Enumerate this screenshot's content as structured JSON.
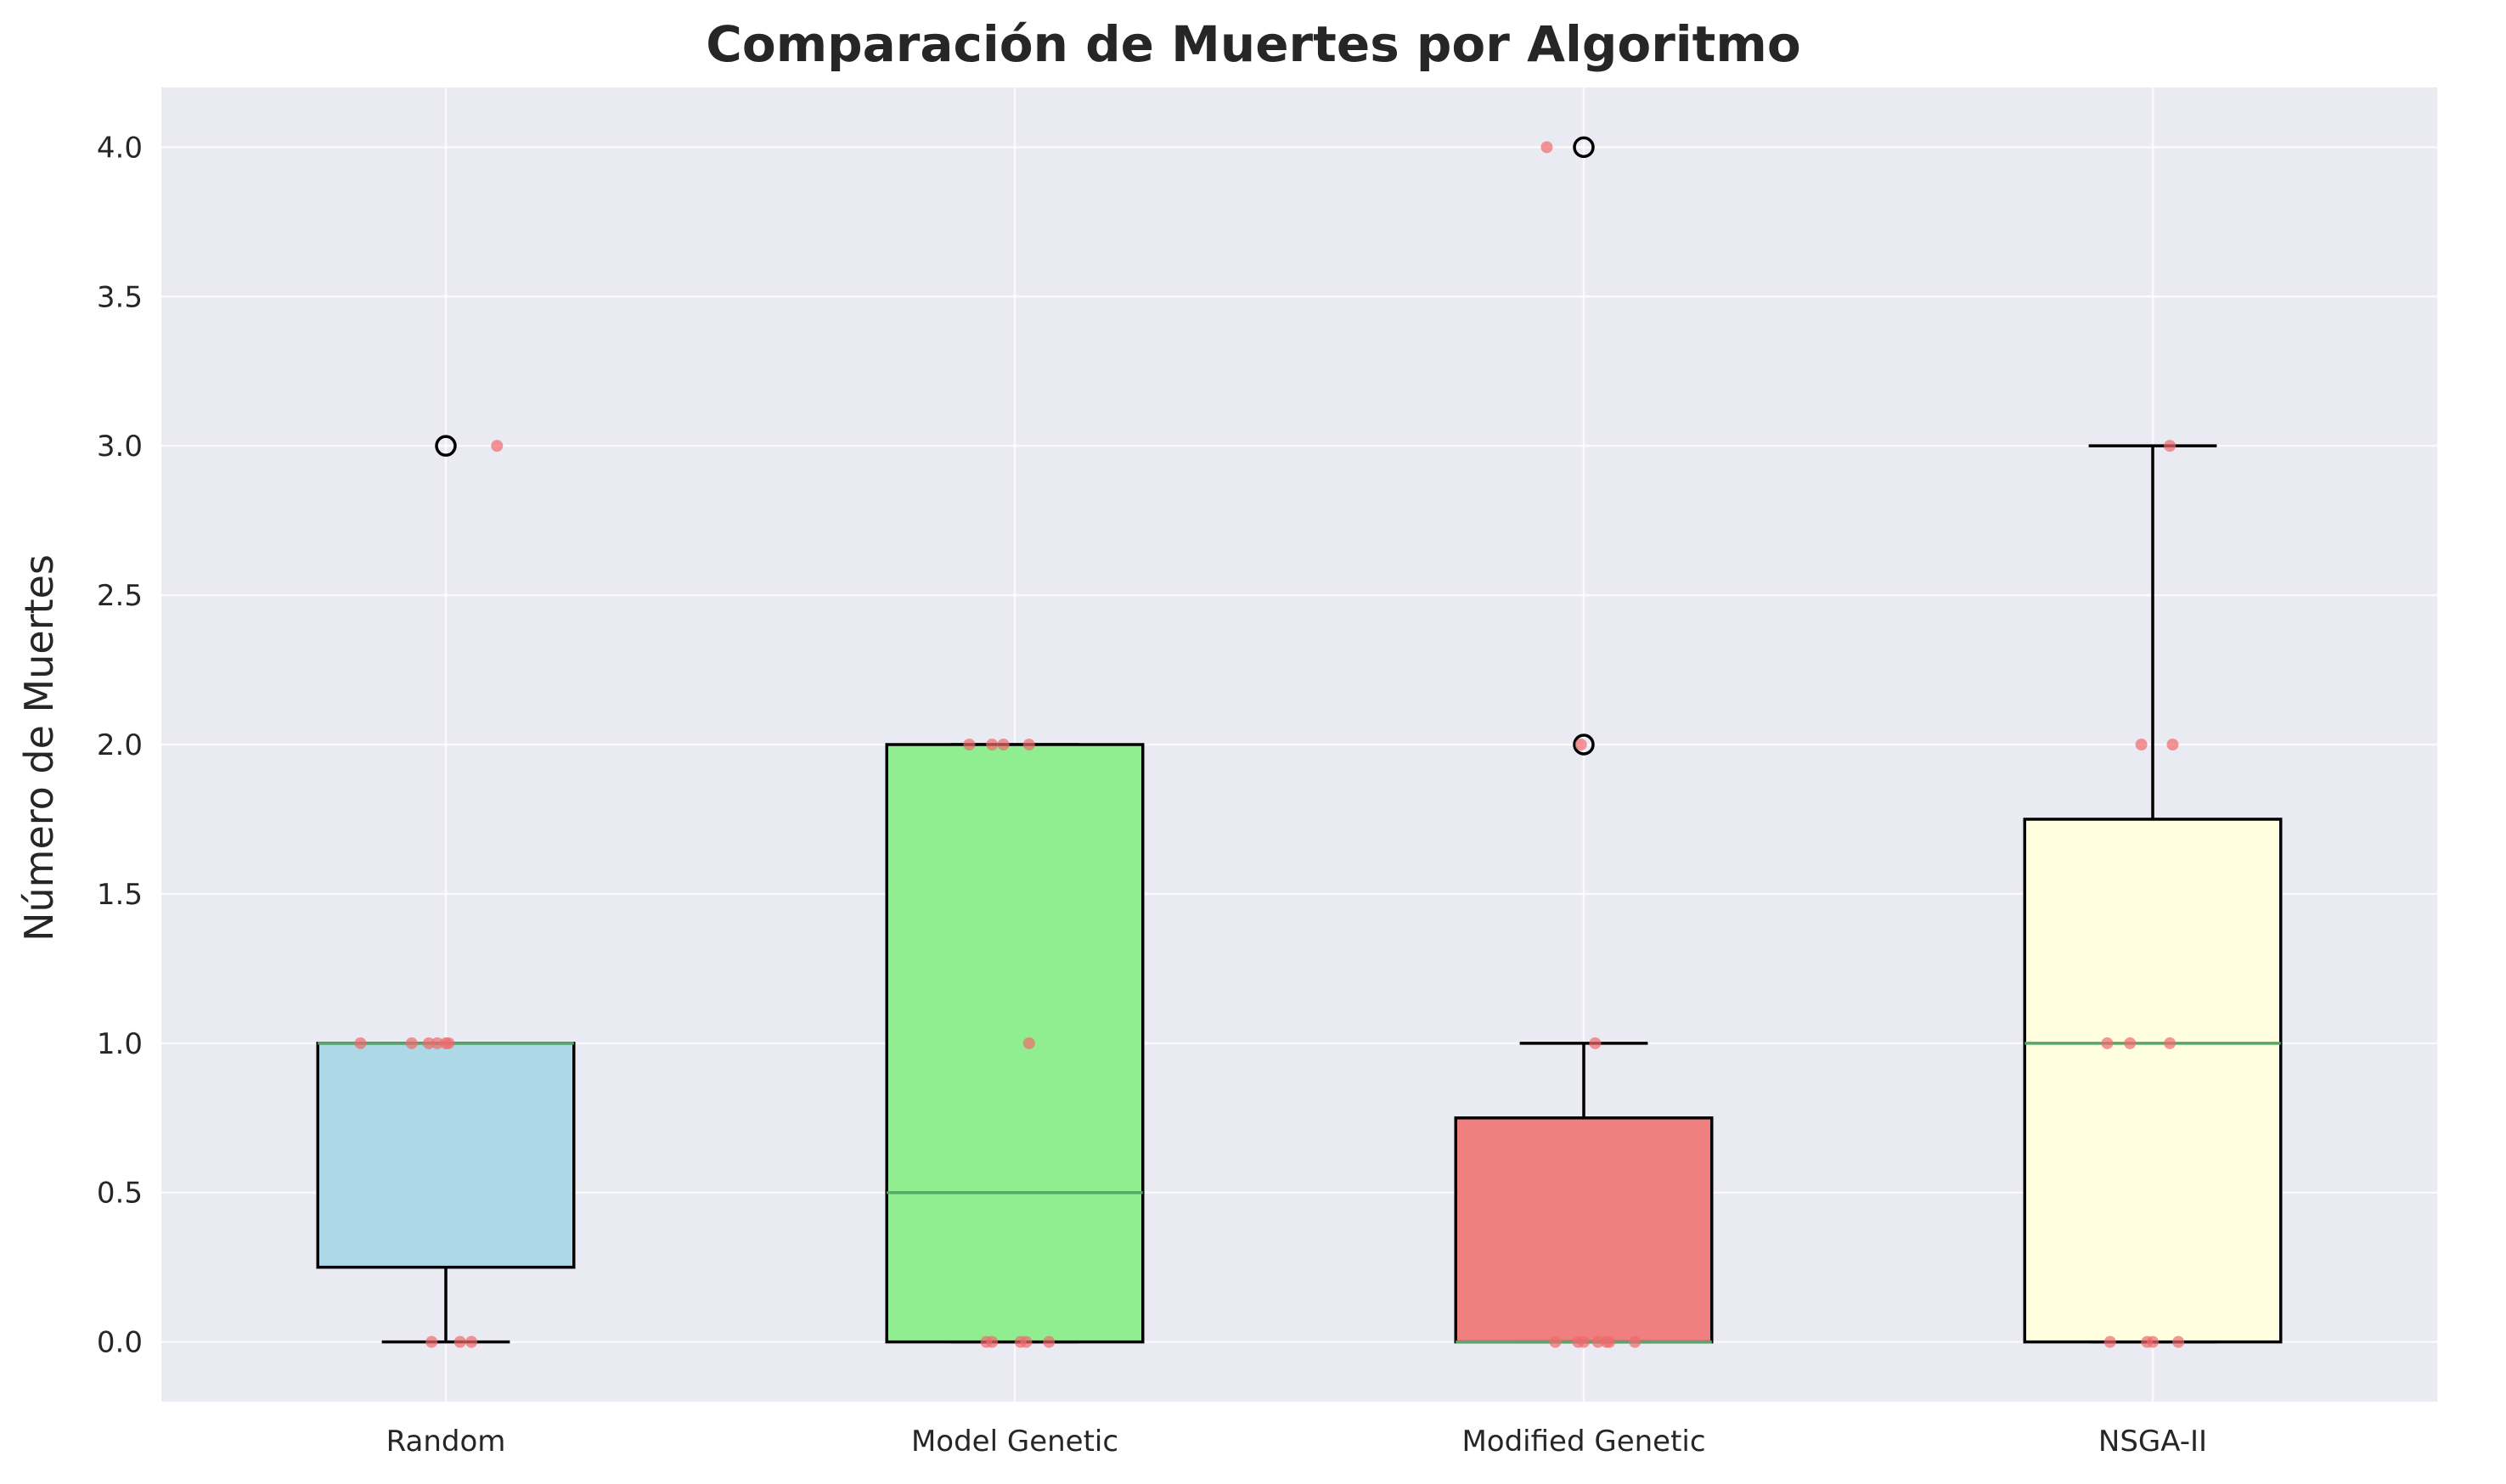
{
  "chart_data": {
    "type": "boxplot",
    "title": "Comparación de Muertes por Algoritmo",
    "xlabel": "",
    "ylabel": "Número de Muertes",
    "ylim": [
      -0.2,
      4.2
    ],
    "yticks": [
      "0.0",
      "0.5",
      "1.0",
      "1.5",
      "2.0",
      "2.5",
      "3.0",
      "3.5",
      "4.0"
    ],
    "ytick_values": [
      0,
      0.5,
      1,
      1.5,
      2,
      2.5,
      3,
      3.5,
      4
    ],
    "grid": true,
    "categories": [
      "Random",
      "Model Genetic",
      "Modified Genetic",
      "NSGA-II"
    ],
    "boxes": [
      {
        "name": "Random",
        "color": "#add8e6",
        "q1": 0.25,
        "median": 1.0,
        "q3": 1.0,
        "whisker_low": 0,
        "whisker_high": 1.0,
        "outliers": [
          3
        ]
      },
      {
        "name": "Model Genetic",
        "color": "#90ee90",
        "q1": 0,
        "median": 0.5,
        "q3": 2.0,
        "whisker_low": 0,
        "whisker_high": 2.0,
        "outliers": []
      },
      {
        "name": "Modified Genetic",
        "color": "#f08080",
        "q1": 0,
        "median": 0,
        "q3": 0.75,
        "whisker_low": 0,
        "whisker_high": 1.0,
        "outliers": [
          2,
          4
        ]
      },
      {
        "name": "NSGA-II",
        "color": "#ffffe0",
        "q1": 0,
        "median": 1.0,
        "q3": 1.75,
        "whisker_low": 0,
        "whisker_high": 3.0,
        "outliers": []
      }
    ],
    "points": [
      {
        "category": "Random",
        "values": [
          1,
          1,
          1,
          1,
          1,
          0,
          0,
          0,
          3,
          1
        ],
        "jitter": [
          -0.3,
          -0.12,
          -0.06,
          -0.03,
          0.01,
          -0.05,
          0.05,
          0.09,
          0.18,
          0.0
        ]
      },
      {
        "category": "Model Genetic",
        "values": [
          2,
          2,
          2,
          2,
          1,
          0,
          0,
          0,
          0,
          0
        ],
        "jitter": [
          -0.16,
          -0.08,
          -0.04,
          0.05,
          0.05,
          -0.1,
          -0.08,
          0.02,
          0.04,
          0.12
        ]
      },
      {
        "category": "Modified Genetic",
        "values": [
          4,
          2,
          1,
          0,
          0,
          0,
          0,
          0,
          0,
          0
        ],
        "jitter": [
          -0.13,
          -0.01,
          0.04,
          -0.1,
          -0.02,
          0.0,
          0.05,
          0.08,
          0.09,
          0.18
        ]
      },
      {
        "category": "NSGA-II",
        "values": [
          3,
          2,
          2,
          1,
          1,
          1,
          0,
          0,
          0,
          0
        ],
        "jitter": [
          0.06,
          -0.04,
          0.07,
          -0.16,
          -0.08,
          0.06,
          -0.15,
          -0.02,
          0.0,
          0.09
        ]
      }
    ],
    "point_color": "#f0696c",
    "box_edge_color": "#000000",
    "median_color": "#55a868",
    "plot_bg": "#eaeaf2",
    "grid_color": "#ffffff"
  }
}
